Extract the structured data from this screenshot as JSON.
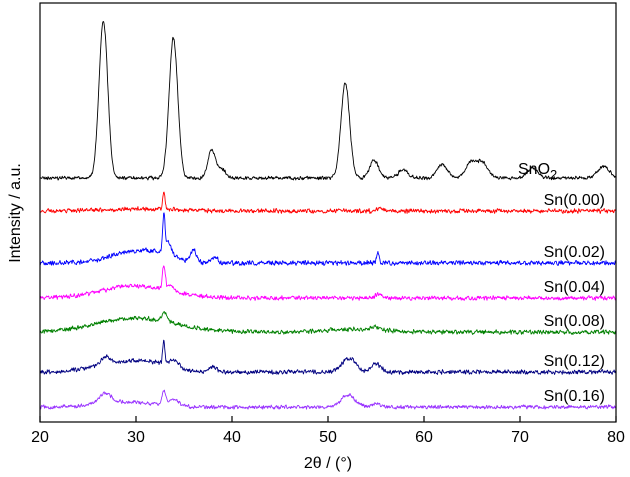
{
  "chart_data": {
    "type": "line",
    "xlabel": "2θ / (°)",
    "ylabel": "Intensity / a.u.",
    "xlim": [
      20,
      80
    ],
    "x_ticks": [
      20,
      30,
      40,
      50,
      60,
      70,
      80
    ],
    "x_tick_labels": [
      "20",
      "30",
      "40",
      "50",
      "60",
      "70",
      "80"
    ],
    "y_ticks_shown": false,
    "grid": false,
    "legend": "inline labels at right end of each trace",
    "stacked_offset": true,
    "series": [
      {
        "name": "SnO2",
        "label_main": "SnO",
        "label_sub": "2",
        "color": "#000000",
        "baseline": 178,
        "noise": 1.3,
        "peaks": [
          [
            26.6,
            158,
            0.45
          ],
          [
            33.9,
            140,
            0.45
          ],
          [
            37.9,
            28,
            0.4
          ],
          [
            39.0,
            8,
            0.4
          ],
          [
            51.8,
            95,
            0.45
          ],
          [
            54.8,
            18,
            0.45
          ],
          [
            57.8,
            8,
            0.5
          ],
          [
            61.9,
            14,
            0.5
          ],
          [
            64.8,
            14,
            0.5
          ],
          [
            66.0,
            16,
            0.6
          ],
          [
            71.3,
            10,
            0.5
          ],
          [
            78.7,
            12,
            0.6
          ]
        ],
        "humps": []
      },
      {
        "name": "Sn(0.00)",
        "color": "#ff0000",
        "baseline": 211,
        "noise": 1.6,
        "peaks": [
          [
            32.9,
            18,
            0.12
          ],
          [
            55.3,
            3,
            0.3
          ]
        ],
        "humps": [
          [
            30.5,
            2,
            4
          ]
        ]
      },
      {
        "name": "Sn(0.02)",
        "color": "#0000ff",
        "baseline": 263,
        "noise": 1.7,
        "peaks": [
          [
            32.9,
            38,
            0.12
          ],
          [
            33.4,
            12,
            0.3
          ],
          [
            36.0,
            12,
            0.3
          ],
          [
            38.2,
            6,
            0.3
          ],
          [
            55.2,
            9,
            0.15
          ]
        ],
        "humps": [
          [
            30.0,
            12,
            2.5
          ],
          [
            33.0,
            4,
            1.5
          ]
        ]
      },
      {
        "name": "Sn(0.04)",
        "color": "#ff00ff",
        "baseline": 298,
        "noise": 1.6,
        "peaks": [
          [
            32.9,
            24,
            0.15
          ],
          [
            33.6,
            6,
            0.3
          ],
          [
            55.3,
            4,
            0.3
          ]
        ],
        "humps": [
          [
            30.0,
            12,
            3.5
          ]
        ]
      },
      {
        "name": "Sn(0.08)",
        "color": "#008000",
        "baseline": 332,
        "noise": 1.6,
        "peaks": [
          [
            33.0,
            8,
            0.3
          ],
          [
            55.0,
            3,
            0.4
          ]
        ],
        "humps": [
          [
            30.0,
            14,
            4
          ],
          [
            53.0,
            3,
            3
          ]
        ]
      },
      {
        "name": "Sn(0.12)",
        "color": "#000080",
        "baseline": 372,
        "noise": 1.6,
        "peaks": [
          [
            26.8,
            8,
            0.5
          ],
          [
            32.9,
            22,
            0.12
          ],
          [
            34.0,
            8,
            0.5
          ],
          [
            38.0,
            5,
            0.4
          ],
          [
            52.2,
            14,
            0.7
          ],
          [
            55.0,
            8,
            0.5
          ]
        ],
        "humps": [
          [
            28.5,
            8,
            3
          ],
          [
            31.5,
            6,
            2
          ]
        ]
      },
      {
        "name": "Sn(0.16)",
        "color": "#9933ff",
        "baseline": 407,
        "noise": 1.4,
        "peaks": [
          [
            26.8,
            10,
            0.6
          ],
          [
            32.9,
            14,
            0.2
          ],
          [
            34.0,
            6,
            0.5
          ],
          [
            52.1,
            12,
            0.7
          ],
          [
            55.0,
            3,
            0.5
          ]
        ],
        "humps": [
          [
            29.0,
            5,
            3
          ]
        ]
      }
    ]
  }
}
